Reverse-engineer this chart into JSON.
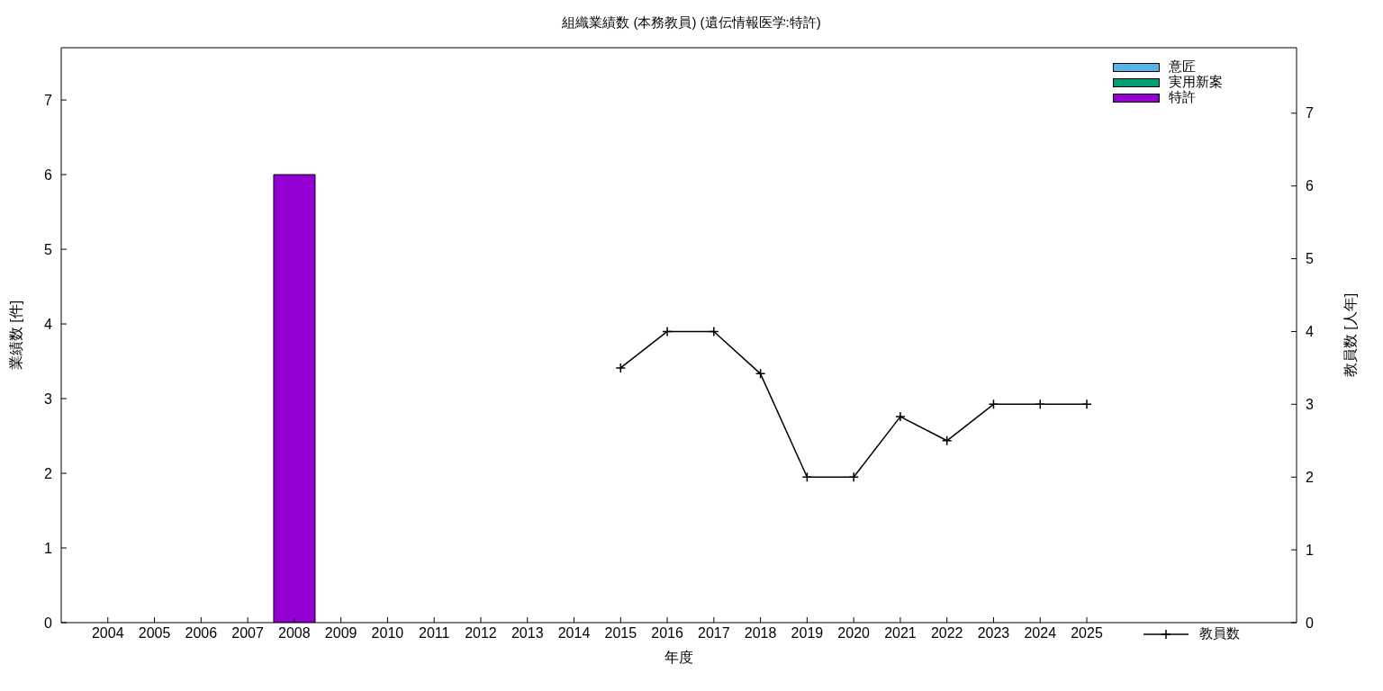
{
  "chart_data": {
    "type": "bar",
    "title": "組織業績数 (本務教員) (遺伝情報医学:特許)",
    "xlabel": "年度",
    "ylabel": "業績数 [件]",
    "y2label": "教員数 [人年]",
    "x": [
      2004,
      2005,
      2006,
      2007,
      2008,
      2009,
      2010,
      2011,
      2012,
      2013,
      2014,
      2015,
      2016,
      2017,
      2018,
      2019,
      2020,
      2021,
      2022,
      2023,
      2024,
      2025
    ],
    "xlim": [
      2003,
      2029.5
    ],
    "xticks": [
      2004,
      2005,
      2006,
      2007,
      2008,
      2009,
      2010,
      2011,
      2012,
      2013,
      2014,
      2015,
      2016,
      2017,
      2018,
      2019,
      2020,
      2021,
      2022,
      2023,
      2024,
      2025
    ],
    "ylim": [
      0,
      7.7
    ],
    "yticks": [
      0,
      1,
      2,
      3,
      4,
      5,
      6,
      7
    ],
    "y2lim": [
      0,
      7.9
    ],
    "y2ticks": [
      0,
      1,
      2,
      3,
      4,
      5,
      6,
      7
    ],
    "stacked": true,
    "grid": false,
    "legend": "right",
    "marker": "cross",
    "line_style": "solid",
    "series": [
      {
        "name": "意匠",
        "color": "#56b4e9",
        "values": [
          0,
          0,
          0,
          0,
          0,
          0,
          0,
          0,
          0,
          0,
          0,
          0,
          0,
          0,
          0,
          0,
          0,
          0,
          0,
          0,
          0,
          0
        ]
      },
      {
        "name": "実用新案",
        "color": "#009e73",
        "values": [
          0,
          0,
          0,
          0,
          0,
          0,
          0,
          0,
          0,
          0,
          0,
          0,
          0,
          0,
          0,
          0,
          0,
          0,
          0,
          0,
          0,
          0
        ]
      },
      {
        "name": "特許",
        "color": "#9400d3",
        "values": [
          0,
          0,
          0,
          0,
          6,
          0,
          0,
          0,
          0,
          0,
          0,
          0,
          0,
          0,
          0,
          0,
          0,
          0,
          0,
          0,
          0,
          0
        ]
      },
      {
        "name": "教員数",
        "type": "line",
        "axis": "y2",
        "color": "#000000",
        "values": [
          null,
          null,
          null,
          null,
          null,
          null,
          null,
          null,
          null,
          null,
          null,
          3.5,
          4,
          4,
          3.42,
          2,
          2,
          2.83,
          2.5,
          3,
          3,
          3
        ]
      }
    ]
  }
}
